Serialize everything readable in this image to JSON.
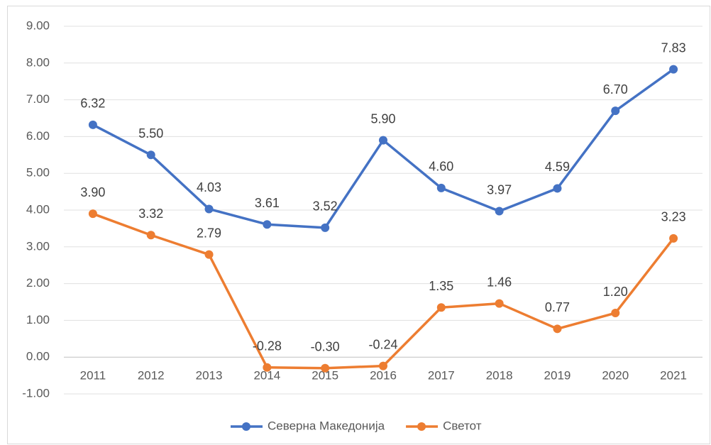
{
  "chart_data": {
    "type": "line",
    "categories": [
      "2011",
      "2012",
      "2013",
      "2014",
      "2015",
      "2016",
      "2017",
      "2018",
      "2019",
      "2020",
      "2021"
    ],
    "series": [
      {
        "name": "Северна Македонија",
        "color": "#4472c4",
        "values": [
          6.32,
          5.5,
          4.03,
          3.61,
          3.52,
          5.9,
          4.6,
          3.97,
          4.59,
          6.7,
          7.83
        ],
        "value_labels": [
          "6.32",
          "5.50",
          "4.03",
          "3.61",
          "3.52",
          "5.90",
          "4.60",
          "3.97",
          "4.59",
          "6.70",
          "7.83"
        ]
      },
      {
        "name": "Светот",
        "color": "#ed7d31",
        "values": [
          3.9,
          3.32,
          2.79,
          -0.28,
          -0.3,
          -0.24,
          1.35,
          1.46,
          0.77,
          1.2,
          3.23
        ],
        "value_labels": [
          "3.90",
          "3.32",
          "2.79",
          "-0.28",
          "-0.30",
          "-0.24",
          "1.35",
          "1.46",
          "0.77",
          "1.20",
          "3.23"
        ]
      }
    ],
    "ylim": [
      -1,
      9
    ],
    "yticks": [
      {
        "value": -1,
        "label": "-1.00"
      },
      {
        "value": 0,
        "label": "0.00"
      },
      {
        "value": 1,
        "label": "1.00"
      },
      {
        "value": 2,
        "label": "2.00"
      },
      {
        "value": 3,
        "label": "3.00"
      },
      {
        "value": 4,
        "label": "4.00"
      },
      {
        "value": 5,
        "label": "5.00"
      },
      {
        "value": 6,
        "label": "6.00"
      },
      {
        "value": 7,
        "label": "7.00"
      },
      {
        "value": 8,
        "label": "8.00"
      },
      {
        "value": 9,
        "label": "9.00"
      }
    ],
    "grid": true,
    "legend": "bottom"
  }
}
